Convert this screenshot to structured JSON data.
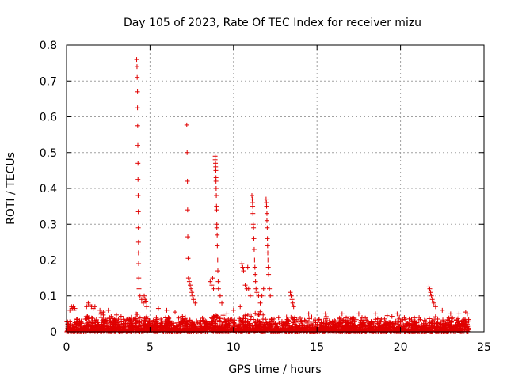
{
  "chart_data": {
    "type": "scatter",
    "title": "Day 105 of 2023, Rate Of TEC Index for receiver mizu",
    "xlabel": "GPS time / hours",
    "ylabel": "ROTI / TECUs",
    "xlim": [
      0,
      25
    ],
    "ylim": [
      0,
      0.8
    ],
    "x_ticks": [
      0,
      5,
      10,
      15,
      20,
      25
    ],
    "y_ticks": [
      0,
      0.1,
      0.2,
      0.3,
      0.4,
      0.5,
      0.6,
      0.7,
      0.8
    ],
    "grid": true,
    "marker": "+",
    "color": "#e00000",
    "series": [
      {
        "points": [
          [
            0.2,
            0.06
          ],
          [
            0.3,
            0.07
          ],
          [
            0.35,
            0.065
          ],
          [
            0.4,
            0.07
          ],
          [
            0.45,
            0.06
          ],
          [
            0.5,
            0.065
          ],
          [
            1.2,
            0.07
          ],
          [
            1.3,
            0.08
          ],
          [
            1.4,
            0.075
          ],
          [
            1.5,
            0.07
          ],
          [
            1.6,
            0.065
          ],
          [
            1.7,
            0.07
          ],
          [
            2.0,
            0.06
          ],
          [
            2.2,
            0.055
          ],
          [
            2.5,
            0.06
          ],
          [
            4.2,
            0.76
          ],
          [
            4.22,
            0.74
          ],
          [
            4.23,
            0.71
          ],
          [
            4.25,
            0.67
          ],
          [
            4.25,
            0.625
          ],
          [
            4.26,
            0.575
          ],
          [
            4.27,
            0.52
          ],
          [
            4.28,
            0.47
          ],
          [
            4.28,
            0.425
          ],
          [
            4.29,
            0.38
          ],
          [
            4.3,
            0.335
          ],
          [
            4.3,
            0.29
          ],
          [
            4.31,
            0.25
          ],
          [
            4.31,
            0.22
          ],
          [
            4.32,
            0.19
          ],
          [
            4.33,
            0.15
          ],
          [
            4.34,
            0.12
          ],
          [
            4.4,
            0.1
          ],
          [
            4.5,
            0.09
          ],
          [
            4.6,
            0.08
          ],
          [
            4.65,
            0.1
          ],
          [
            4.7,
            0.09
          ],
          [
            4.75,
            0.085
          ],
          [
            4.8,
            0.07
          ],
          [
            5.5,
            0.065
          ],
          [
            6.0,
            0.06
          ],
          [
            6.5,
            0.055
          ],
          [
            7.2,
            0.577
          ],
          [
            7.22,
            0.5
          ],
          [
            7.24,
            0.42
          ],
          [
            7.25,
            0.34
          ],
          [
            7.26,
            0.265
          ],
          [
            7.28,
            0.205
          ],
          [
            7.3,
            0.15
          ],
          [
            7.35,
            0.14
          ],
          [
            7.4,
            0.13
          ],
          [
            7.45,
            0.12
          ],
          [
            7.5,
            0.11
          ],
          [
            7.55,
            0.1
          ],
          [
            7.6,
            0.09
          ],
          [
            7.7,
            0.08
          ],
          [
            8.6,
            0.14
          ],
          [
            8.7,
            0.13
          ],
          [
            8.75,
            0.15
          ],
          [
            8.8,
            0.12
          ],
          [
            8.9,
            0.49
          ],
          [
            8.9,
            0.48
          ],
          [
            8.92,
            0.47
          ],
          [
            8.93,
            0.46
          ],
          [
            8.94,
            0.45
          ],
          [
            8.95,
            0.43
          ],
          [
            8.95,
            0.42
          ],
          [
            8.96,
            0.4
          ],
          [
            8.97,
            0.38
          ],
          [
            8.98,
            0.35
          ],
          [
            8.99,
            0.34
          ],
          [
            9.0,
            0.3
          ],
          [
            9.0,
            0.29
          ],
          [
            9.02,
            0.27
          ],
          [
            9.03,
            0.24
          ],
          [
            9.05,
            0.2
          ],
          [
            9.06,
            0.17
          ],
          [
            9.08,
            0.14
          ],
          [
            9.1,
            0.12
          ],
          [
            9.2,
            0.1
          ],
          [
            9.3,
            0.08
          ],
          [
            9.6,
            0.05
          ],
          [
            10.0,
            0.06
          ],
          [
            10.4,
            0.07
          ],
          [
            10.5,
            0.19
          ],
          [
            10.55,
            0.18
          ],
          [
            10.6,
            0.17
          ],
          [
            10.7,
            0.13
          ],
          [
            10.8,
            0.12
          ],
          [
            10.85,
            0.18
          ],
          [
            10.9,
            0.12
          ],
          [
            11.0,
            0.1
          ],
          [
            11.1,
            0.38
          ],
          [
            11.12,
            0.37
          ],
          [
            11.14,
            0.36
          ],
          [
            11.15,
            0.35
          ],
          [
            11.16,
            0.33
          ],
          [
            11.18,
            0.3
          ],
          [
            11.2,
            0.29
          ],
          [
            11.22,
            0.26
          ],
          [
            11.24,
            0.23
          ],
          [
            11.26,
            0.2
          ],
          [
            11.28,
            0.18
          ],
          [
            11.3,
            0.16
          ],
          [
            11.32,
            0.14
          ],
          [
            11.35,
            0.12
          ],
          [
            11.4,
            0.11
          ],
          [
            11.5,
            0.1
          ],
          [
            11.6,
            0.08
          ],
          [
            11.7,
            0.1
          ],
          [
            11.8,
            0.12
          ],
          [
            11.95,
            0.37
          ],
          [
            11.97,
            0.36
          ],
          [
            11.98,
            0.35
          ],
          [
            12.0,
            0.33
          ],
          [
            12.0,
            0.31
          ],
          [
            12.02,
            0.29
          ],
          [
            12.03,
            0.26
          ],
          [
            12.04,
            0.24
          ],
          [
            12.05,
            0.22
          ],
          [
            12.06,
            0.2
          ],
          [
            12.08,
            0.18
          ],
          [
            12.1,
            0.16
          ],
          [
            12.15,
            0.12
          ],
          [
            12.2,
            0.1
          ],
          [
            13.4,
            0.11
          ],
          [
            13.45,
            0.1
          ],
          [
            13.5,
            0.09
          ],
          [
            13.55,
            0.08
          ],
          [
            13.6,
            0.07
          ],
          [
            14.5,
            0.05
          ],
          [
            15.5,
            0.05
          ],
          [
            16.5,
            0.05
          ],
          [
            17.5,
            0.05
          ],
          [
            18.5,
            0.05
          ],
          [
            19.2,
            0.045
          ],
          [
            19.8,
            0.05
          ],
          [
            21.7,
            0.125
          ],
          [
            21.75,
            0.12
          ],
          [
            21.8,
            0.11
          ],
          [
            21.85,
            0.1
          ],
          [
            21.9,
            0.09
          ],
          [
            22.0,
            0.08
          ],
          [
            22.1,
            0.07
          ],
          [
            22.5,
            0.06
          ],
          [
            23.0,
            0.05
          ],
          [
            23.5,
            0.05
          ],
          [
            23.9,
            0.055
          ],
          [
            24.0,
            0.05
          ]
        ]
      }
    ]
  }
}
